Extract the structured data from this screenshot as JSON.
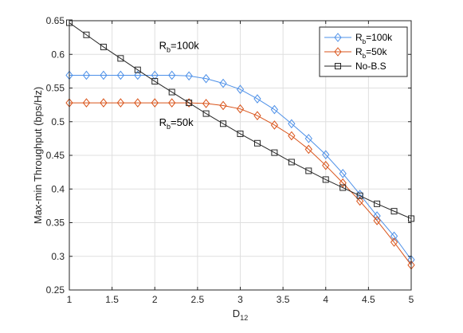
{
  "chart_data": {
    "type": "line",
    "xlabel_main": "D",
    "xlabel_sub": "12",
    "ylabel": "Max-min Throughput (bps/Hz)",
    "xlim": [
      1,
      5
    ],
    "ylim": [
      0.25,
      0.65
    ],
    "xticks": [
      "1",
      "1.5",
      "2",
      "2.5",
      "3",
      "3.5",
      "4",
      "4.5",
      "5"
    ],
    "yticks": [
      "0.25",
      "0.3",
      "0.35",
      "0.4",
      "0.45",
      "0.5",
      "0.55",
      "0.6",
      "0.65"
    ],
    "grid": true,
    "legend_position": "top-right",
    "x": [
      1,
      1.2,
      1.4,
      1.6,
      1.8,
      2,
      2.2,
      2.4,
      2.6,
      2.8,
      3,
      3.2,
      3.4,
      3.6,
      3.8,
      4,
      4.2,
      4.4,
      4.6,
      4.8,
      5
    ],
    "series": [
      {
        "name_main": "R",
        "name_sub": "b",
        "name_tail": "=100k",
        "color": "#4d90e8",
        "marker": "diamond",
        "values": [
          0.569,
          0.569,
          0.569,
          0.569,
          0.569,
          0.569,
          0.569,
          0.568,
          0.564,
          0.557,
          0.548,
          0.534,
          0.518,
          0.497,
          0.475,
          0.451,
          0.423,
          0.392,
          0.36,
          0.33,
          0.295
        ]
      },
      {
        "name_main": "R",
        "name_sub": "b",
        "name_tail": "=50k",
        "color": "#d95319",
        "marker": "diamond",
        "values": [
          0.528,
          0.528,
          0.528,
          0.528,
          0.528,
          0.528,
          0.528,
          0.528,
          0.527,
          0.524,
          0.519,
          0.509,
          0.495,
          0.479,
          0.459,
          0.435,
          0.409,
          0.382,
          0.353,
          0.321,
          0.287
        ]
      },
      {
        "name": "No-B.S",
        "color": "#262626",
        "marker": "square",
        "values": [
          0.647,
          0.629,
          0.611,
          0.594,
          0.577,
          0.56,
          0.544,
          0.528,
          0.512,
          0.497,
          0.482,
          0.468,
          0.454,
          0.44,
          0.427,
          0.414,
          0.402,
          0.39,
          0.378,
          0.367,
          0.356
        ]
      }
    ],
    "annotations": [
      {
        "main": "R",
        "sub": "b",
        "tail": "=100k",
        "x": 2.05,
        "y": 0.608
      },
      {
        "main": "R",
        "sub": "b",
        "tail": "=50k",
        "x": 2.05,
        "y": 0.494
      }
    ]
  }
}
